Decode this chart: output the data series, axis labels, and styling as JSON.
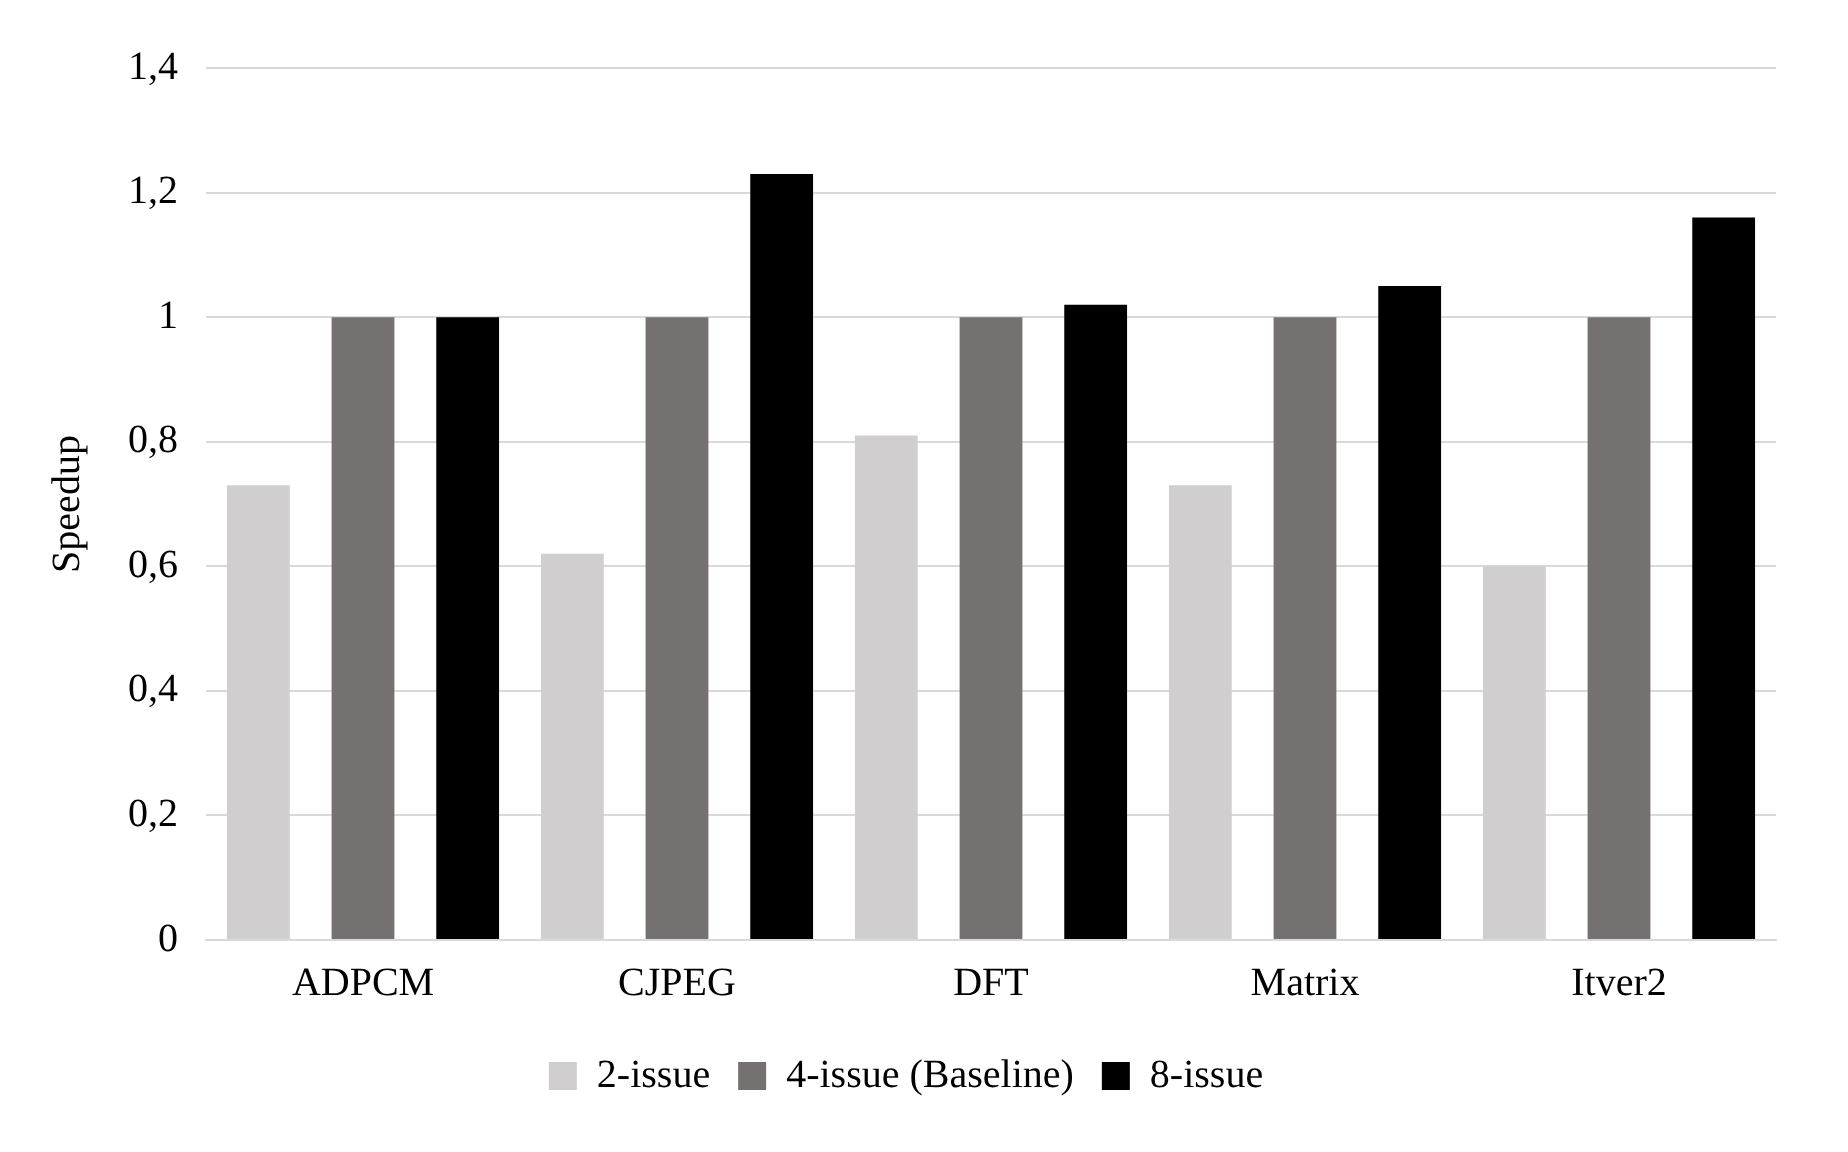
{
  "chart_data": {
    "type": "bar",
    "ylabel": "Speedup",
    "categories": [
      "ADPCM",
      "CJPEG",
      "DFT",
      "Matrix",
      "Itver2"
    ],
    "series": [
      {
        "name": "2-issue",
        "color": "#d0cece",
        "values": [
          0.73,
          0.62,
          0.81,
          0.73,
          0.6
        ]
      },
      {
        "name": "4-issue (Baseline)",
        "color": "#767171",
        "values": [
          1,
          1,
          1,
          1,
          1
        ]
      },
      {
        "name": "8-issue",
        "color": "#000000",
        "values": [
          1.0,
          1.23,
          1.02,
          1.05,
          1.16
        ]
      }
    ],
    "ylim": [
      0,
      1.4
    ],
    "yticks": [
      0,
      {
        "value": 0.2,
        "label": "0,2"
      },
      {
        "value": 0.4,
        "label": "0,4"
      },
      {
        "value": 0.6,
        "label": "0,6"
      },
      {
        "value": 0.8,
        "label": "0,8"
      },
      1,
      {
        "value": 1.2,
        "label": "1,2"
      },
      {
        "value": 1.4,
        "label": "1,4"
      }
    ],
    "grid": "y",
    "legend": "bottom"
  }
}
